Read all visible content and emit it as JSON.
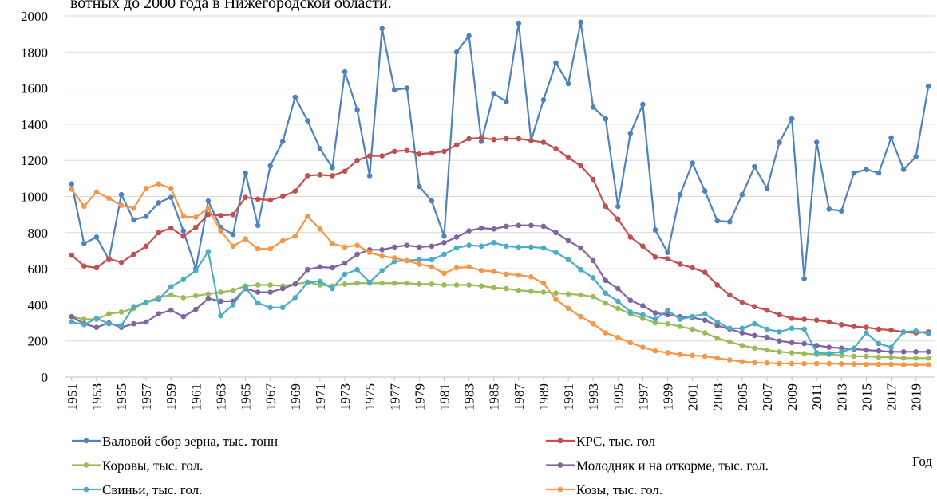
{
  "chart_data": {
    "type": "line",
    "title": "вотных до 2000 года в Нижегородской области.",
    "x_label": "Год",
    "x": [
      1951,
      1952,
      1953,
      1954,
      1955,
      1956,
      1957,
      1958,
      1959,
      1960,
      1961,
      1962,
      1963,
      1964,
      1965,
      1966,
      1967,
      1968,
      1969,
      1970,
      1971,
      1972,
      1973,
      1974,
      1975,
      1976,
      1977,
      1978,
      1979,
      1980,
      1981,
      1982,
      1983,
      1984,
      1985,
      1986,
      1987,
      1988,
      1989,
      1990,
      1991,
      1992,
      1993,
      1994,
      1995,
      1996,
      1997,
      1998,
      1999,
      2000,
      2001,
      2002,
      2003,
      2004,
      2005,
      2006,
      2007,
      2008,
      2009,
      2010,
      2011,
      2012,
      2013,
      2014,
      2015,
      2016,
      2017,
      2018,
      2019,
      2020
    ],
    "xlim": [
      1950.5,
      2020.5
    ],
    "xticks": [
      1951,
      1953,
      1955,
      1957,
      1959,
      1961,
      1963,
      1965,
      1967,
      1969,
      1971,
      1973,
      1975,
      1977,
      1979,
      1981,
      1983,
      1985,
      1987,
      1989,
      1991,
      1993,
      1995,
      1997,
      1999,
      2001,
      2003,
      2005,
      2007,
      2009,
      2011,
      2013,
      2015,
      2017,
      2019
    ],
    "ylim": [
      0,
      2000
    ],
    "yticks": [
      0,
      200,
      400,
      600,
      800,
      1000,
      1200,
      1400,
      1600,
      1800,
      2000
    ],
    "grid": true,
    "legend": "bottom",
    "series": [
      {
        "name": "Валовой сбор зерна, тыс. тонн",
        "color": "#4f81bd",
        "values": [
          1070,
          740,
          775,
          650,
          1010,
          870,
          890,
          965,
          995,
          810,
          600,
          975,
          830,
          790,
          1130,
          840,
          1170,
          1305,
          1550,
          1420,
          1265,
          1160,
          1690,
          1480,
          1115,
          1930,
          1590,
          1600,
          1055,
          975,
          780,
          1800,
          1890,
          1305,
          1570,
          1525,
          1960,
          1310,
          1535,
          1740,
          1625,
          1965,
          1495,
          1430,
          945,
          1350,
          1510,
          815,
          690,
          1010,
          1185,
          1030,
          865,
          860,
          1010,
          1165,
          1045,
          1300,
          1430,
          545,
          1300,
          930,
          920,
          1130,
          1150,
          1130,
          1325,
          1150,
          1220,
          1610
        ]
      },
      {
        "name": "КРС, тыс. гол",
        "color": "#c0504d",
        "values": [
          675,
          615,
          605,
          655,
          635,
          680,
          725,
          800,
          825,
          780,
          830,
          900,
          895,
          900,
          995,
          985,
          980,
          1000,
          1030,
          1115,
          1120,
          1115,
          1140,
          1200,
          1225,
          1225,
          1250,
          1255,
          1235,
          1240,
          1250,
          1285,
          1320,
          1325,
          1315,
          1320,
          1320,
          1310,
          1300,
          1265,
          1215,
          1170,
          1095,
          945,
          875,
          775,
          725,
          665,
          655,
          625,
          605,
          580,
          510,
          455,
          415,
          390,
          370,
          345,
          325,
          320,
          315,
          305,
          290,
          280,
          275,
          265,
          260,
          250,
          245,
          250
        ]
      },
      {
        "name": "Коровы, тыс. гол.",
        "color": "#9bbb59",
        "values": [
          335,
          320,
          320,
          350,
          360,
          380,
          415,
          440,
          455,
          440,
          450,
          460,
          470,
          480,
          505,
          510,
          510,
          505,
          515,
          525,
          510,
          505,
          515,
          520,
          520,
          520,
          520,
          520,
          515,
          515,
          510,
          510,
          510,
          505,
          495,
          490,
          480,
          475,
          470,
          465,
          460,
          455,
          445,
          410,
          380,
          350,
          325,
          300,
          295,
          280,
          265,
          245,
          215,
          195,
          175,
          160,
          150,
          140,
          135,
          130,
          125,
          125,
          120,
          115,
          115,
          110,
          110,
          105,
          105,
          105
        ]
      },
      {
        "name": "Молодняк и на откорме, тыс. гол.",
        "color": "#8064a2",
        "values": [
          335,
          295,
          275,
          300,
          275,
          295,
          305,
          350,
          370,
          335,
          375,
          435,
          420,
          420,
          490,
          470,
          470,
          490,
          515,
          595,
          610,
          605,
          630,
          680,
          705,
          705,
          720,
          730,
          720,
          725,
          745,
          775,
          810,
          825,
          820,
          835,
          840,
          840,
          835,
          800,
          755,
          715,
          645,
          535,
          490,
          425,
          395,
          355,
          345,
          335,
          330,
          315,
          285,
          265,
          245,
          230,
          220,
          200,
          190,
          185,
          175,
          165,
          160,
          155,
          150,
          145,
          140,
          140,
          140,
          140
        ]
      },
      {
        "name": "Свиньи, тыс. гол.",
        "color": "#4bacc6",
        "values": [
          305,
          290,
          325,
          295,
          285,
          390,
          415,
          430,
          500,
          540,
          590,
          695,
          340,
          400,
          495,
          410,
          385,
          385,
          440,
          525,
          530,
          490,
          570,
          595,
          525,
          590,
          640,
          645,
          650,
          650,
          680,
          715,
          730,
          725,
          745,
          725,
          720,
          720,
          715,
          690,
          650,
          595,
          550,
          465,
          420,
          360,
          345,
          320,
          370,
          320,
          335,
          350,
          305,
          270,
          270,
          295,
          265,
          250,
          270,
          265,
          135,
          130,
          140,
          160,
          245,
          185,
          165,
          250,
          255,
          240
        ]
      },
      {
        "name": "Козы, тыс. гол.",
        "color": "#f79646",
        "values": [
          1040,
          945,
          1025,
          990,
          950,
          935,
          1045,
          1070,
          1045,
          890,
          885,
          935,
          810,
          725,
          765,
          710,
          710,
          755,
          780,
          890,
          820,
          740,
          720,
          730,
          690,
          670,
          660,
          645,
          625,
          610,
          575,
          605,
          610,
          590,
          585,
          570,
          565,
          555,
          520,
          430,
          380,
          335,
          295,
          245,
          220,
          190,
          165,
          145,
          135,
          125,
          120,
          115,
          105,
          95,
          85,
          80,
          78,
          75,
          75,
          75,
          75,
          75,
          73,
          72,
          70,
          70,
          70,
          68,
          68,
          68
        ]
      }
    ]
  }
}
